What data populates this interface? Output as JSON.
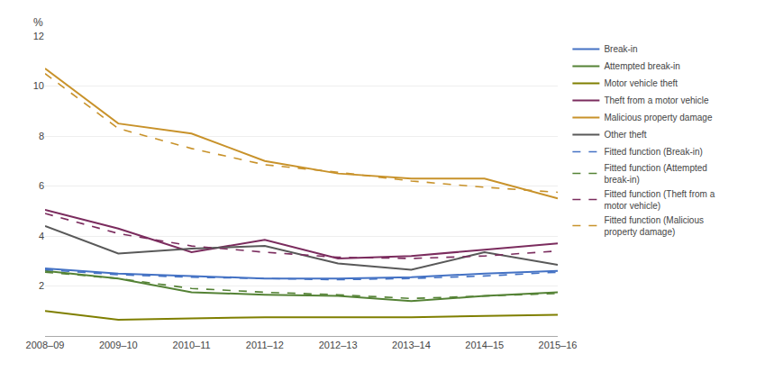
{
  "chart_data": {
    "type": "line",
    "ylabel": "%",
    "categories": [
      "2008–09",
      "2009–10",
      "2010–11",
      "2011–12",
      "2012–13",
      "2013–14",
      "2014–15",
      "2015–16"
    ],
    "series": [
      {
        "name": "Break-in",
        "color": "#4472C4",
        "line_style": "solid",
        "values": [
          2.7,
          2.5,
          2.4,
          2.3,
          2.3,
          2.35,
          2.5,
          2.6
        ]
      },
      {
        "name": "Attempted break-in",
        "color": "#548235",
        "line_style": "solid",
        "values": [
          2.6,
          2.3,
          1.75,
          1.65,
          1.6,
          1.4,
          1.6,
          1.75
        ]
      },
      {
        "name": "Motor vehicle theft",
        "color": "#7F7F00",
        "line_style": "solid",
        "values": [
          1.0,
          0.65,
          0.7,
          0.75,
          0.75,
          0.75,
          0.8,
          0.85
        ]
      },
      {
        "name": "Theft from a motor vehicle",
        "color": "#7B2C5E",
        "line_style": "solid",
        "values": [
          5.05,
          4.3,
          3.35,
          3.85,
          3.1,
          3.2,
          3.45,
          3.7
        ]
      },
      {
        "name": "Malicious property damage",
        "color": "#C8922A",
        "line_style": "solid",
        "values": [
          10.7,
          8.5,
          8.1,
          7.0,
          6.5,
          6.3,
          6.3,
          5.5
        ]
      },
      {
        "name": "Other theft",
        "color": "#595959",
        "line_style": "solid",
        "values": [
          4.4,
          3.3,
          3.5,
          3.6,
          2.9,
          2.65,
          3.35,
          2.85
        ]
      },
      {
        "name": "Fitted function (Break-in)",
        "color": "#4472C4",
        "line_style": "dashed",
        "values": [
          2.65,
          2.45,
          2.35,
          2.3,
          2.25,
          2.3,
          2.4,
          2.55
        ]
      },
      {
        "name": "Fitted function (Attempted\nbreak-in)",
        "color": "#548235",
        "line_style": "dashed",
        "values": [
          2.55,
          2.3,
          1.9,
          1.75,
          1.65,
          1.5,
          1.6,
          1.7
        ]
      },
      {
        "name": "Fitted function (Theft from a\nmotor vehicle)",
        "color": "#7B2C5E",
        "line_style": "dashed",
        "values": [
          4.9,
          4.1,
          3.6,
          3.35,
          3.15,
          3.1,
          3.2,
          3.4
        ]
      },
      {
        "name": "Fitted function (Malicious\nproperty damage)",
        "color": "#C8922A",
        "line_style": "dashed",
        "values": [
          10.5,
          8.3,
          7.5,
          6.85,
          6.55,
          6.2,
          5.95,
          5.75
        ]
      }
    ],
    "ylim": [
      0,
      12
    ],
    "yticks": [
      2,
      4,
      6,
      8,
      10,
      12
    ],
    "grid": true,
    "legend": "right"
  }
}
